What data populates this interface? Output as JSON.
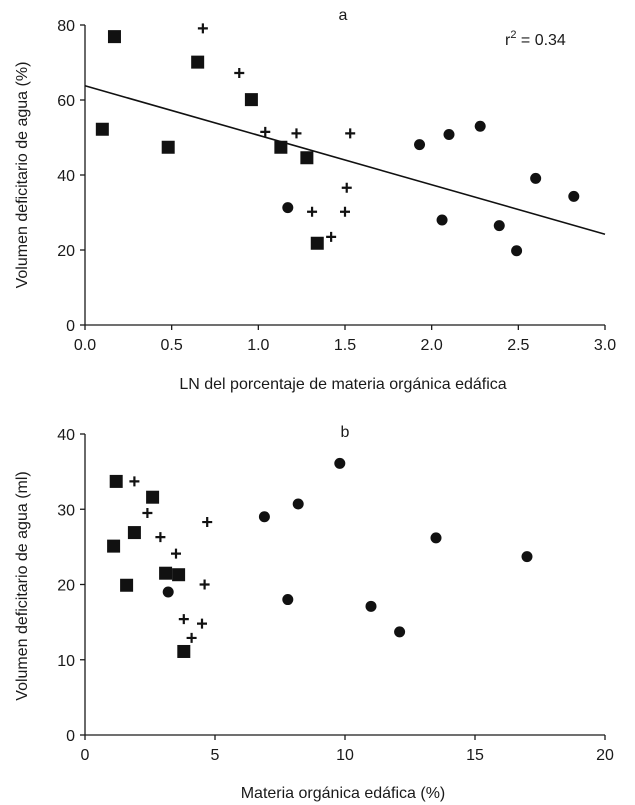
{
  "chart_data": [
    {
      "type": "scatter",
      "panel_label": "a",
      "title": "",
      "xlabel": "LN del porcentaje de materia orgánica edáfica",
      "ylabel": "Volumen deficitario de agua (%)",
      "xlim": [
        0,
        3
      ],
      "ylim": [
        0,
        80
      ],
      "xticks": [
        0.0,
        0.5,
        1.0,
        1.5,
        2.0,
        2.5,
        3.0
      ],
      "xtick_labels": [
        "0.0",
        "0.5",
        "1.0",
        "1.5",
        "2.0",
        "2.5",
        "3.0"
      ],
      "yticks": [
        0,
        20,
        40,
        60,
        80
      ],
      "ytick_labels": [
        "0",
        "20",
        "40",
        "60",
        "80"
      ],
      "grid": false,
      "annotation": {
        "text": "r",
        "superscript": "2",
        "suffix": " = 0.34"
      },
      "trendline": {
        "x": [
          0,
          3
        ],
        "y": [
          63.8,
          24.2
        ]
      },
      "series": [
        {
          "marker": "square",
          "points": [
            [
              0.1,
              52.2
            ],
            [
              0.17,
              76.9
            ],
            [
              0.48,
              47.4
            ],
            [
              0.65,
              70.1
            ],
            [
              0.96,
              60.1
            ],
            [
              1.13,
              47.4
            ],
            [
              1.28,
              44.6
            ],
            [
              1.34,
              21.8
            ]
          ]
        },
        {
          "marker": "plus",
          "points": [
            [
              0.68,
              79.1
            ],
            [
              0.89,
              67.2
            ],
            [
              1.04,
              51.5
            ],
            [
              1.22,
              51.1
            ],
            [
              1.31,
              30.2
            ],
            [
              1.42,
              23.5
            ],
            [
              1.5,
              30.2
            ],
            [
              1.51,
              36.6
            ],
            [
              1.53,
              51.1
            ]
          ]
        },
        {
          "marker": "circle",
          "points": [
            [
              1.17,
              31.3
            ],
            [
              1.93,
              48.1
            ],
            [
              2.06,
              28.0
            ],
            [
              2.1,
              50.8
            ],
            [
              2.28,
              53.0
            ],
            [
              2.39,
              26.5
            ],
            [
              2.49,
              19.8
            ],
            [
              2.6,
              39.1
            ],
            [
              2.82,
              34.3
            ]
          ]
        }
      ]
    },
    {
      "type": "scatter",
      "panel_label": "b",
      "title": "",
      "xlabel": "Materia orgánica edáfica (%)",
      "ylabel": "Volumen deficitario de agua (ml)",
      "xlim": [
        0,
        20
      ],
      "ylim": [
        0,
        40
      ],
      "xticks": [
        0,
        5,
        10,
        15,
        20
      ],
      "xtick_labels": [
        "0",
        "5",
        "10",
        "15",
        "20"
      ],
      "yticks": [
        0,
        10,
        20,
        30,
        40
      ],
      "ytick_labels": [
        "0",
        "10",
        "20",
        "30",
        "40"
      ],
      "grid": false,
      "series": [
        {
          "marker": "square",
          "points": [
            [
              1.1,
              25.1
            ],
            [
              1.2,
              33.7
            ],
            [
              1.6,
              19.9
            ],
            [
              1.9,
              26.9
            ],
            [
              2.6,
              31.6
            ],
            [
              3.1,
              21.5
            ],
            [
              3.6,
              21.3
            ],
            [
              3.8,
              11.1
            ]
          ]
        },
        {
          "marker": "plus",
          "points": [
            [
              1.9,
              33.7
            ],
            [
              2.4,
              29.5
            ],
            [
              2.9,
              26.3
            ],
            [
              3.5,
              24.1
            ],
            [
              3.8,
              15.4
            ],
            [
              4.1,
              12.9
            ],
            [
              4.5,
              14.8
            ],
            [
              4.6,
              20.0
            ],
            [
              4.7,
              28.3
            ]
          ]
        },
        {
          "marker": "circle",
          "points": [
            [
              3.2,
              19.0
            ],
            [
              6.9,
              29.0
            ],
            [
              7.8,
              18.0
            ],
            [
              8.2,
              30.7
            ],
            [
              9.8,
              36.1
            ],
            [
              11.0,
              17.1
            ],
            [
              12.1,
              13.7
            ],
            [
              13.5,
              26.2
            ],
            [
              17.0,
              23.7
            ]
          ]
        }
      ]
    }
  ]
}
